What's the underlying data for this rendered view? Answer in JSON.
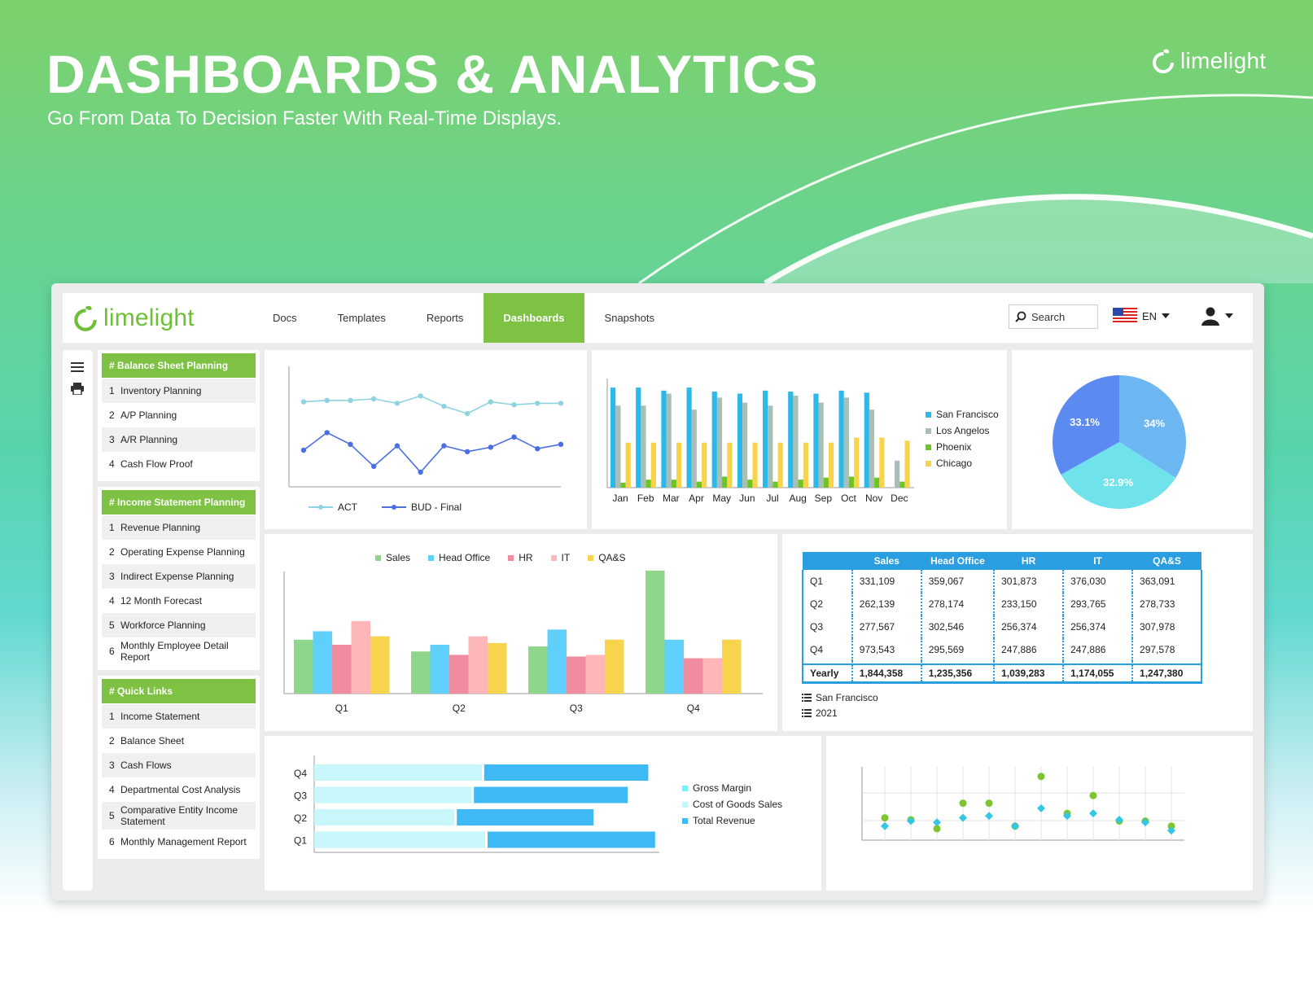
{
  "hero": {
    "title": "DASHBOARDS & ANALYTICS",
    "subtitle": "Go From Data To Decision Faster With Real-Time Displays.",
    "logo_text": "limelight"
  },
  "topbar": {
    "logo_text": "limelight",
    "nav": [
      "Docs",
      "Templates",
      "Reports",
      "Dashboards",
      "Snapshots"
    ],
    "active_nav": "Dashboards",
    "search_placeholder": "Search",
    "language": "EN"
  },
  "sidebar": {
    "groups": [
      {
        "title": "# Balance Sheet Planning",
        "items": [
          {
            "num": "1",
            "label": "Inventory Planning"
          },
          {
            "num": "2",
            "label": "A/P Planning"
          },
          {
            "num": "3",
            "label": "A/R Planning"
          },
          {
            "num": "4",
            "label": "Cash Flow Proof"
          }
        ]
      },
      {
        "title": "# Income Statement Planning",
        "items": [
          {
            "num": "1",
            "label": "Revenue Planning"
          },
          {
            "num": "2",
            "label": "Operating Expense Planning"
          },
          {
            "num": "3",
            "label": "Indirect Expense Planning"
          },
          {
            "num": "4",
            "label": "12 Month Forecast"
          },
          {
            "num": "5",
            "label": "Workforce Planning"
          },
          {
            "num": "6",
            "label": "Monthly Employee Detail Report"
          }
        ]
      },
      {
        "title": "# Quick Links",
        "items": [
          {
            "num": "1",
            "label": "Income Statement"
          },
          {
            "num": "2",
            "label": "Balance Sheet"
          },
          {
            "num": "3",
            "label": "Cash Flows"
          },
          {
            "num": "4",
            "label": "Departmental Cost Analysis"
          },
          {
            "num": "5",
            "label": "Comparative Entity Income Statement"
          },
          {
            "num": "6",
            "label": "Monthly Management Report"
          }
        ]
      }
    ]
  },
  "chart_data": [
    {
      "type": "line",
      "x": [
        1,
        2,
        3,
        4,
        5,
        6,
        7,
        8,
        9,
        10,
        11,
        12
      ],
      "series": [
        {
          "name": "ACT",
          "color": "#8fd3e0",
          "values": [
            78,
            79,
            79,
            80,
            77,
            82,
            75,
            70,
            78,
            76,
            77,
            77
          ]
        },
        {
          "name": "BUD - Final",
          "color": "#4a6fe3",
          "values": [
            45,
            57,
            49,
            34,
            48,
            30,
            48,
            44,
            47,
            54,
            46,
            49
          ]
        }
      ],
      "ylim": [
        20,
        100
      ]
    },
    {
      "type": "bar",
      "categories": [
        "Jan",
        "Feb",
        "Mar",
        "Apr",
        "May",
        "Jun",
        "Jul",
        "Aug",
        "Sep",
        "Oct",
        "Nov",
        "Dec"
      ],
      "series": [
        {
          "name": "San Francisco",
          "color": "#2bb8ea",
          "values": [
            100,
            100,
            97,
            100,
            96,
            94,
            97,
            96,
            94,
            97,
            95,
            0
          ]
        },
        {
          "name": "Los Angelos",
          "color": "#a8bfb5",
          "values": [
            82,
            82,
            94,
            78,
            90,
            85,
            82,
            92,
            85,
            90,
            78,
            27
          ]
        },
        {
          "name": "Phoenix",
          "color": "#6cc425",
          "values": [
            5,
            8,
            8,
            6,
            11,
            8,
            6,
            8,
            10,
            11,
            10,
            6
          ]
        },
        {
          "name": "Chicago",
          "color": "#f8d44c",
          "values": [
            45,
            45,
            45,
            45,
            45,
            45,
            45,
            45,
            45,
            50,
            50,
            47
          ]
        }
      ],
      "ylim": [
        0,
        105
      ]
    },
    {
      "type": "pie",
      "slices": [
        {
          "label": "34%",
          "value": 34,
          "color": "#6cb7f2"
        },
        {
          "label": "32.9%",
          "value": 32.9,
          "color": "#6fe2ec"
        },
        {
          "label": "33.1%",
          "value": 33.1,
          "color": "#5b8af0"
        }
      ]
    },
    {
      "type": "bar",
      "categories": [
        "Q1",
        "Q2",
        "Q3",
        "Q4"
      ],
      "series": [
        {
          "name": "Sales",
          "color": "#8fd68a",
          "values": [
            32,
            25,
            28,
            73
          ]
        },
        {
          "name": "Head Office",
          "color": "#5fd0fb",
          "values": [
            37,
            29,
            38,
            32
          ]
        },
        {
          "name": "HR",
          "color": "#f08ca0",
          "values": [
            29,
            23,
            22,
            21
          ]
        },
        {
          "name": "IT",
          "color": "#ffb6b9",
          "values": [
            43,
            34,
            23,
            21
          ]
        },
        {
          "name": "QA&S",
          "color": "#f8d44c",
          "values": [
            34,
            30,
            32,
            32
          ]
        }
      ],
      "ylim": [
        0,
        100
      ]
    },
    {
      "type": "bar",
      "orientation": "horizontal",
      "categories": [
        "Q4",
        "Q3",
        "Q2",
        "Q1"
      ],
      "series": [
        {
          "name": "Gross Margin",
          "color": "#7eeefa",
          "values": [
            0,
            0,
            0,
            0
          ]
        },
        {
          "name": "Cost of Goods Sales",
          "color": "#c8f7fb",
          "values": [
            49,
            46,
            41,
            50
          ]
        },
        {
          "name": "Total Revenue",
          "color": "#3fb9f3",
          "values": [
            48,
            45,
            40,
            49
          ]
        }
      ],
      "xlim": [
        0,
        100
      ]
    },
    {
      "type": "scatter",
      "x": [
        1,
        2,
        3,
        4,
        5,
        6,
        7,
        8,
        9,
        10,
        11,
        12
      ],
      "series": [
        {
          "name": "green",
          "color": "#7cc62d",
          "values": [
            35,
            32,
            18,
            58,
            58,
            22,
            100,
            42,
            70,
            30,
            30,
            22
          ]
        },
        {
          "name": "cyan",
          "color": "#34c6e6",
          "values": [
            22,
            30,
            28,
            35,
            38,
            22,
            50,
            38,
            42,
            32,
            28,
            15
          ]
        }
      ],
      "ylim": [
        0,
        115
      ]
    }
  ],
  "table": {
    "headers": [
      "",
      "Sales",
      "Head Office",
      "HR",
      "IT",
      "QA&S"
    ],
    "rows": [
      [
        "Q1",
        "331,109",
        "359,067",
        "301,873",
        "376,030",
        "363,091"
      ],
      [
        "Q2",
        "262,139",
        "278,174",
        "233,150",
        "293,765",
        "278,733"
      ],
      [
        "Q3",
        "277,567",
        "302,546",
        "256,374",
        "256,374",
        "307,978"
      ],
      [
        "Q4",
        "973,543",
        "295,569",
        "247,886",
        "247,886",
        "297,578"
      ]
    ],
    "yearly": [
      "Yearly",
      "1,844,358",
      "1,235,356",
      "1,039,283",
      "1,174,055",
      "1,247,380"
    ],
    "filter_location": "San Francisco",
    "filter_year": "2021"
  }
}
